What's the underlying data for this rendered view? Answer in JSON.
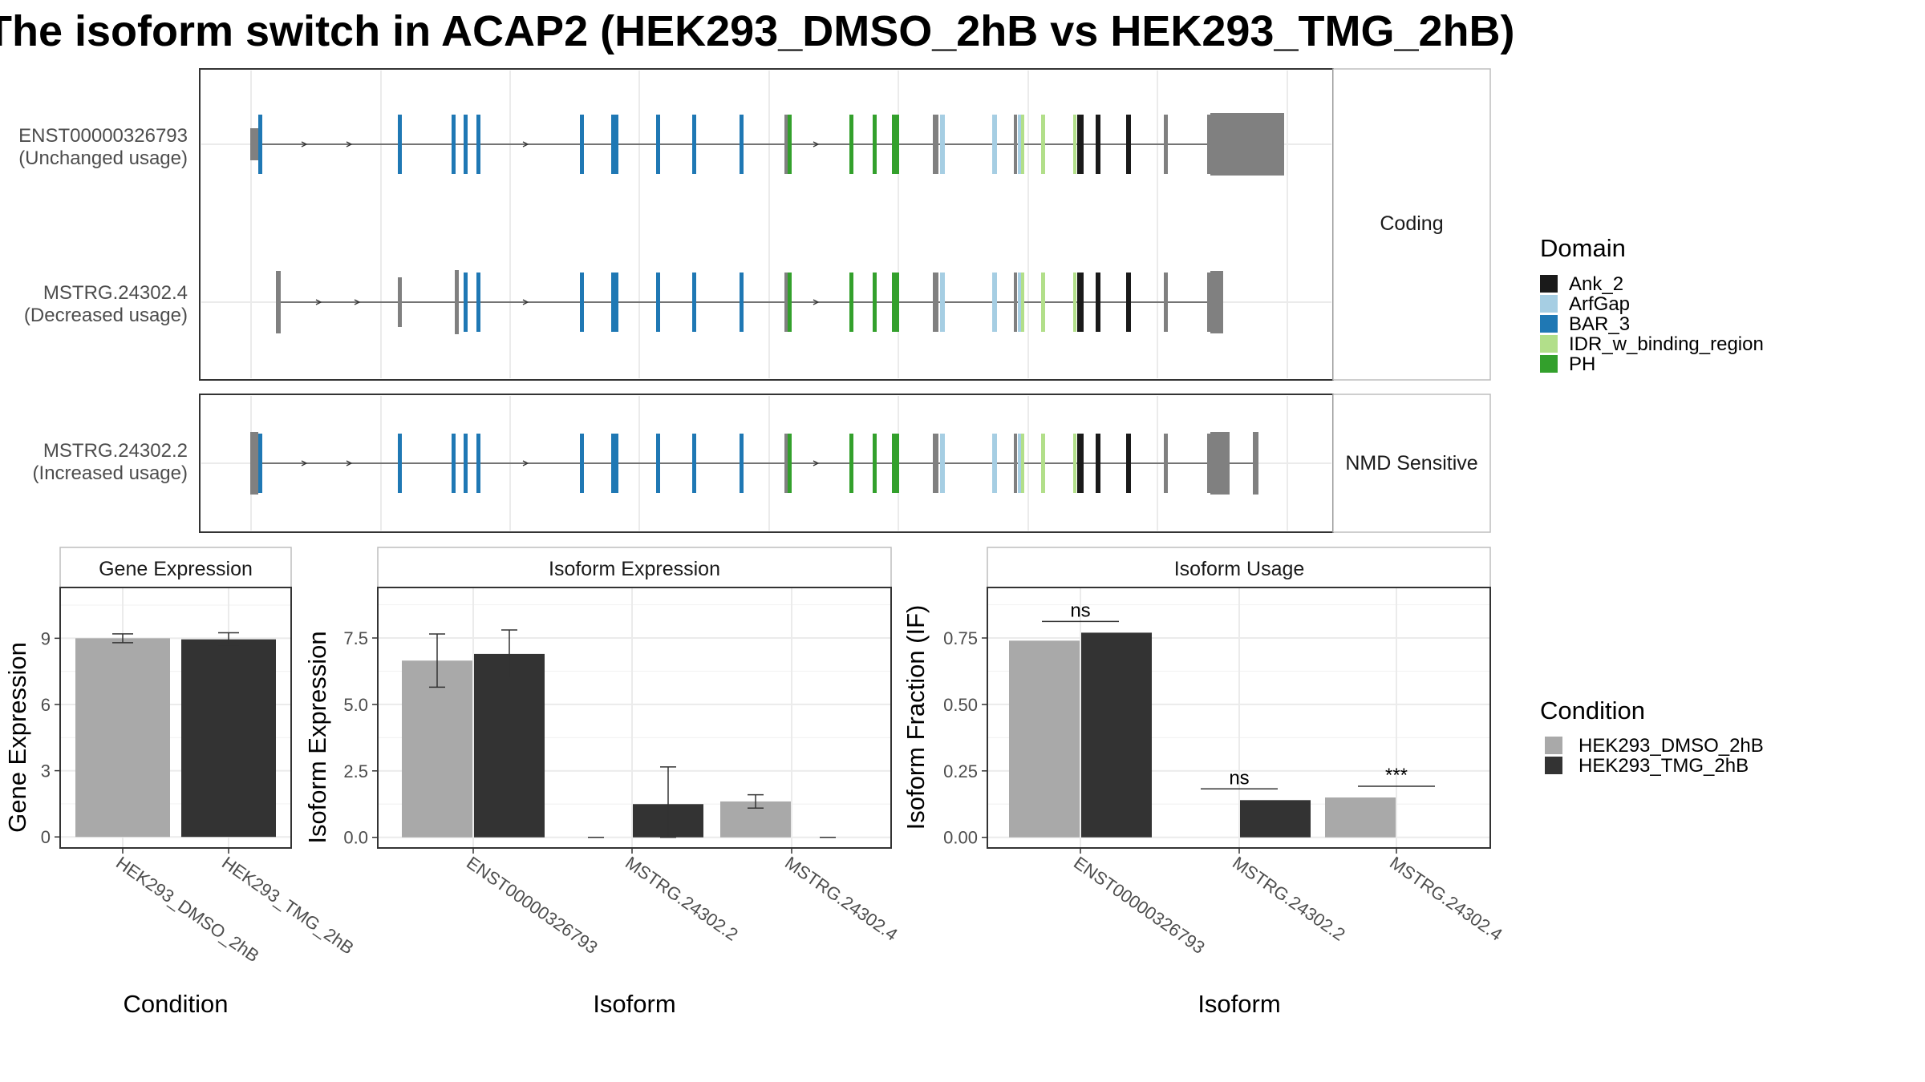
{
  "title": "The isoform switch in ACAP2 (HEK293_DMSO_2hB vs HEK293_TMG_2hB)",
  "colors": {
    "Ank_2": "#1a1a1a",
    "ArfGap": "#a6cee3",
    "BAR_3": "#1f78b4",
    "IDR_w_binding_region": "#b2df8a",
    "PH": "#33a02c",
    "exon": "#808080",
    "HEK293_DMSO_2hB": "#a9a9a9",
    "HEK293_TMG_2hB": "#333333"
  },
  "structure": {
    "panels": [
      {
        "label": "Coding",
        "isoforms": [
          {
            "id": "ENST00000326793",
            "usage": "(Unchanged usage)"
          },
          {
            "id": "MSTRG.24302.4",
            "usage": "(Decreased usage)"
          }
        ]
      },
      {
        "label": "NMD Sensitive",
        "isoforms": [
          {
            "id": "MSTRG.24302.2",
            "usage": "(Increased usage)"
          }
        ]
      }
    ],
    "legend_title": "Domain",
    "legend": [
      "Ank_2",
      "ArfGap",
      "BAR_3",
      "IDR_w_binding_region",
      "PH"
    ]
  },
  "chart_data": [
    {
      "type": "bar",
      "panel": "Gene Expression",
      "xlabel": "Condition",
      "ylabel": "Gene Expression",
      "categories": [
        "HEK293_DMSO_2hB",
        "HEK293_TMG_2hB"
      ],
      "values": [
        9.0,
        8.95
      ],
      "error": [
        [
          8.8,
          9.2
        ],
        [
          8.7,
          9.25
        ]
      ],
      "yticks": [
        "0",
        "3",
        "6",
        "9"
      ],
      "ylim": [
        -0.5,
        11.3
      ]
    },
    {
      "type": "bar",
      "panel": "Isoform Expression",
      "xlabel": "Isoform",
      "ylabel": "Isoform Expression",
      "categories": [
        "ENST00000326793",
        "MSTRG.24302.2",
        "MSTRG.24302.4"
      ],
      "series": [
        {
          "name": "HEK293_DMSO_2hB",
          "values": [
            6.65,
            0.0,
            1.35
          ],
          "error": [
            [
              5.65,
              7.65
            ],
            [
              0.0,
              0.0
            ],
            [
              1.1,
              1.6
            ]
          ]
        },
        {
          "name": "HEK293_TMG_2hB",
          "values": [
            6.9,
            1.25,
            0.0
          ],
          "error": [
            [
              6.0,
              7.8
            ],
            [
              0.0,
              2.65
            ],
            [
              0.0,
              0.0
            ]
          ]
        }
      ],
      "yticks": [
        "0.0",
        "2.5",
        "5.0",
        "7.5"
      ],
      "ylim": [
        -0.4,
        9.4
      ]
    },
    {
      "type": "bar",
      "panel": "Isoform Usage",
      "xlabel": "Isoform",
      "ylabel": "Isoform Fraction (IF)",
      "categories": [
        "ENST00000326793",
        "MSTRG.24302.2",
        "MSTRG.24302.4"
      ],
      "series": [
        {
          "name": "HEK293_DMSO_2hB",
          "values": [
            0.74,
            0.0,
            0.15
          ]
        },
        {
          "name": "HEK293_TMG_2hB",
          "values": [
            0.77,
            0.14,
            0.0
          ]
        }
      ],
      "significance": [
        "ns",
        "ns",
        "***"
      ],
      "yticks": [
        "0.00",
        "0.25",
        "0.50",
        "0.75"
      ],
      "ylim": [
        -0.04,
        0.94
      ]
    }
  ],
  "condition_legend": {
    "title": "Condition",
    "items": [
      "HEK293_DMSO_2hB",
      "HEK293_TMG_2hB"
    ]
  }
}
